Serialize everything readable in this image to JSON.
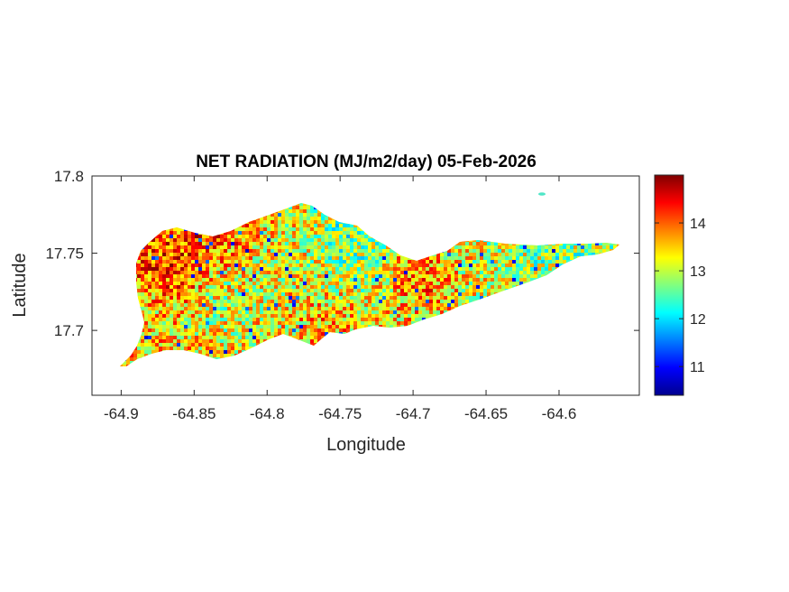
{
  "chart_data": {
    "type": "heatmap",
    "title": "NET RADIATION (MJ/m2/day) 05-Feb-2026",
    "xlabel": "Longitude",
    "ylabel": "Latitude",
    "xlim": [
      -64.92,
      -64.545
    ],
    "ylim": [
      17.658,
      17.8
    ],
    "x_ticks": [
      -64.9,
      -64.85,
      -64.8,
      -64.75,
      -64.7,
      -64.65,
      -64.6
    ],
    "x_tick_labels": [
      "-64.9",
      "-64.85",
      "-64.8",
      "-64.75",
      "-64.7",
      "-64.65",
      "-64.6"
    ],
    "y_ticks": [
      17.7,
      17.75,
      17.8
    ],
    "y_tick_labels": [
      "17.7",
      "17.75",
      "17.8"
    ],
    "colorbar": {
      "colormap": "jet",
      "range": [
        10.4,
        15.0
      ],
      "ticks": [
        11,
        12,
        13,
        14
      ],
      "tick_labels": [
        "11",
        "12",
        "13",
        "14"
      ]
    },
    "grid": false,
    "regions": [
      {
        "lon": -64.865,
        "lat": 17.743,
        "value": 14.5
      },
      {
        "lon": -64.845,
        "lat": 17.76,
        "value": 14.2
      },
      {
        "lon": -64.82,
        "lat": 17.765,
        "value": 14.0
      },
      {
        "lon": -64.8,
        "lat": 17.745,
        "value": 13.0
      },
      {
        "lon": -64.78,
        "lat": 17.76,
        "value": 13.2
      },
      {
        "lon": -64.75,
        "lat": 17.76,
        "value": 12.3
      },
      {
        "lon": -64.73,
        "lat": 17.745,
        "value": 12.6
      },
      {
        "lon": -64.7,
        "lat": 17.738,
        "value": 14.3
      },
      {
        "lon": -64.76,
        "lat": 17.705,
        "value": 13.8
      },
      {
        "lon": -64.83,
        "lat": 17.72,
        "value": 12.7
      },
      {
        "lon": -64.88,
        "lat": 17.71,
        "value": 13.4
      },
      {
        "lon": -64.65,
        "lat": 17.745,
        "value": 13.1
      },
      {
        "lon": -64.6,
        "lat": 17.75,
        "value": 12.8
      },
      {
        "lon": -64.62,
        "lat": 17.787,
        "value": 12.2
      }
    ]
  }
}
